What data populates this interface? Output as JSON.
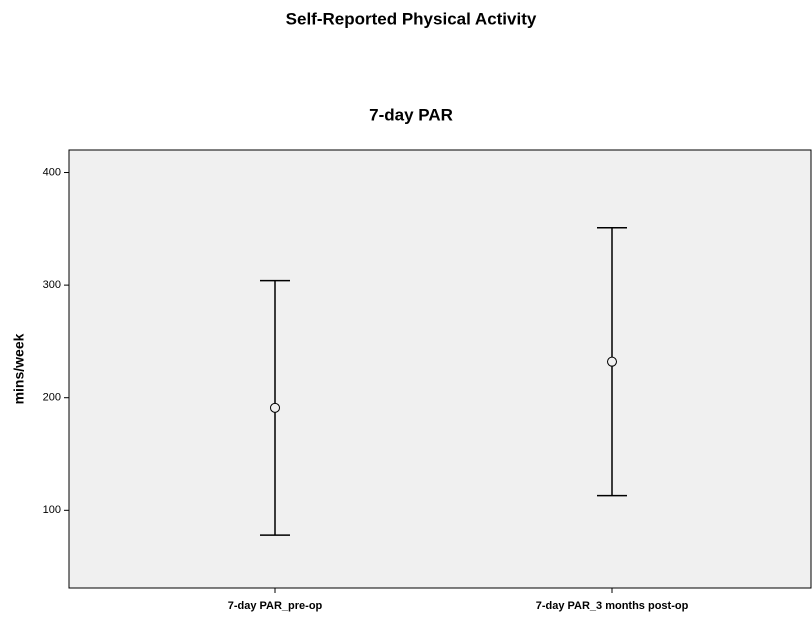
{
  "chart_data": {
    "type": "errorbar",
    "title": "Self-Reported Physical Activity",
    "subtitle": "7-day PAR",
    "ylabel": "mins/week",
    "categories": [
      "7-day PAR_pre-op",
      "7-day PAR_3 months post-op"
    ],
    "values": [
      191,
      232
    ],
    "lower": [
      78,
      113
    ],
    "upper": [
      304,
      351
    ],
    "color": "#000000",
    "ylim": [
      31,
      420
    ],
    "yticks": [
      100,
      200,
      300,
      400
    ]
  }
}
